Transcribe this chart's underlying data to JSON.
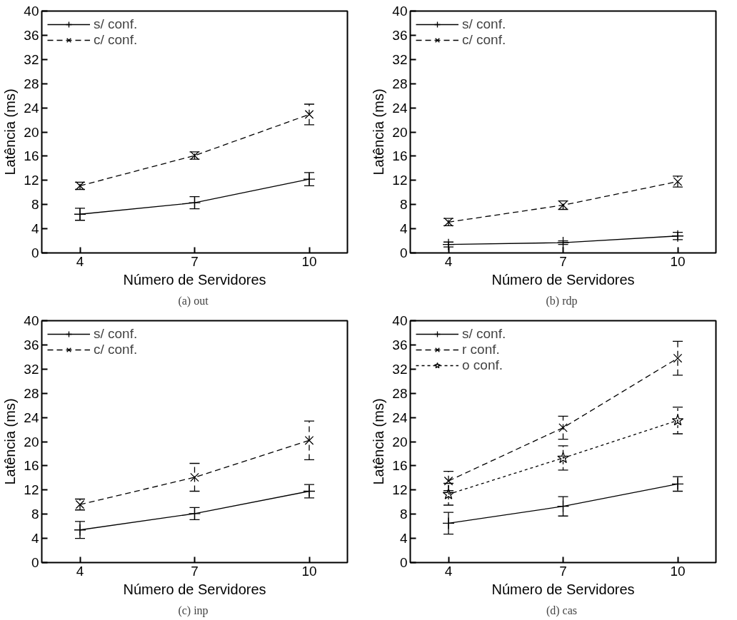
{
  "chart_data": [
    {
      "type": "line",
      "x": [
        4,
        7,
        10
      ],
      "xlim": [
        3,
        11
      ],
      "xticks": [
        4,
        7,
        10
      ],
      "ylim": [
        0,
        40
      ],
      "yticks": [
        0,
        4,
        8,
        12,
        16,
        20,
        24,
        28,
        32,
        36,
        40
      ],
      "xlabel": "Número de Servidores",
      "ylabel": "Latência (ms)",
      "annotations": [
        "(a)  out"
      ],
      "legend": "top left",
      "grid": false,
      "series": [
        {
          "name": "s/ conf.",
          "color": "#000000",
          "marker": "cross",
          "line_style": "solid",
          "values": [
            6.4,
            8.3,
            12.2
          ],
          "errors": [
            1.0,
            1.0,
            1.1
          ]
        },
        {
          "name": "c/ conf.",
          "color": "#000000",
          "marker": "x",
          "line_style": "dashed",
          "values": [
            11.1,
            16.1,
            22.9
          ],
          "errors": [
            0.6,
            0.6,
            1.7
          ]
        }
      ]
    },
    {
      "type": "line",
      "x": [
        4,
        7,
        10
      ],
      "xlim": [
        3,
        11
      ],
      "xticks": [
        4,
        7,
        10
      ],
      "ylim": [
        0,
        40
      ],
      "yticks": [
        0,
        4,
        8,
        12,
        16,
        20,
        24,
        28,
        32,
        36,
        40
      ],
      "xlabel": "Número de Servidores",
      "ylabel": "Latência (ms)",
      "annotations": [
        "(b)  rdp"
      ],
      "legend": "top left",
      "grid": false,
      "series": [
        {
          "name": "s/ conf.",
          "color": "#000000",
          "marker": "cross",
          "line_style": "solid",
          "values": [
            1.4,
            1.7,
            2.8
          ],
          "errors": [
            0.4,
            0.3,
            0.6
          ]
        },
        {
          "name": "c/ conf.",
          "color": "#000000",
          "marker": "x",
          "line_style": "dashed",
          "values": [
            5.1,
            7.9,
            11.8
          ],
          "errors": [
            0.6,
            0.7,
            0.9
          ]
        }
      ]
    },
    {
      "type": "line",
      "x": [
        4,
        7,
        10
      ],
      "xlim": [
        3,
        11
      ],
      "xticks": [
        4,
        7,
        10
      ],
      "ylim": [
        0,
        40
      ],
      "yticks": [
        0,
        4,
        8,
        12,
        16,
        20,
        24,
        28,
        32,
        36,
        40
      ],
      "xlabel": "Número de Servidores",
      "ylabel": "Latência (ms)",
      "annotations": [
        "(c)  inp"
      ],
      "legend": "top left",
      "grid": false,
      "series": [
        {
          "name": "s/ conf.",
          "color": "#000000",
          "marker": "cross",
          "line_style": "solid",
          "values": [
            5.4,
            8.1,
            11.8
          ],
          "errors": [
            1.4,
            1.0,
            1.1
          ]
        },
        {
          "name": "c/ conf.",
          "color": "#000000",
          "marker": "x",
          "line_style": "dashed",
          "values": [
            9.6,
            14.1,
            20.2
          ],
          "errors": [
            0.9,
            2.3,
            3.2
          ]
        }
      ]
    },
    {
      "type": "line",
      "x": [
        4,
        7,
        10
      ],
      "xlim": [
        3,
        11
      ],
      "xticks": [
        4,
        7,
        10
      ],
      "ylim": [
        0,
        40
      ],
      "yticks": [
        0,
        4,
        8,
        12,
        16,
        20,
        24,
        28,
        32,
        36,
        40
      ],
      "xlabel": "Número de Servidores",
      "ylabel": "Latência (ms)",
      "annotations": [
        "(d)  cas"
      ],
      "legend": "top left",
      "grid": false,
      "series": [
        {
          "name": "s/ conf.",
          "color": "#000000",
          "marker": "cross",
          "line_style": "solid",
          "values": [
            6.5,
            9.3,
            13.0
          ],
          "errors": [
            1.8,
            1.6,
            1.2
          ]
        },
        {
          "name": "r conf.",
          "color": "#000000",
          "marker": "x",
          "line_style": "dashed",
          "values": [
            13.5,
            22.3,
            33.8
          ],
          "errors": [
            1.6,
            1.9,
            2.8
          ]
        },
        {
          "name": "o conf.",
          "color": "#000000",
          "marker": "star",
          "line_style": "dotted",
          "values": [
            11.3,
            17.3,
            23.5
          ],
          "errors": [
            1.8,
            2.0,
            2.2
          ]
        }
      ]
    }
  ]
}
